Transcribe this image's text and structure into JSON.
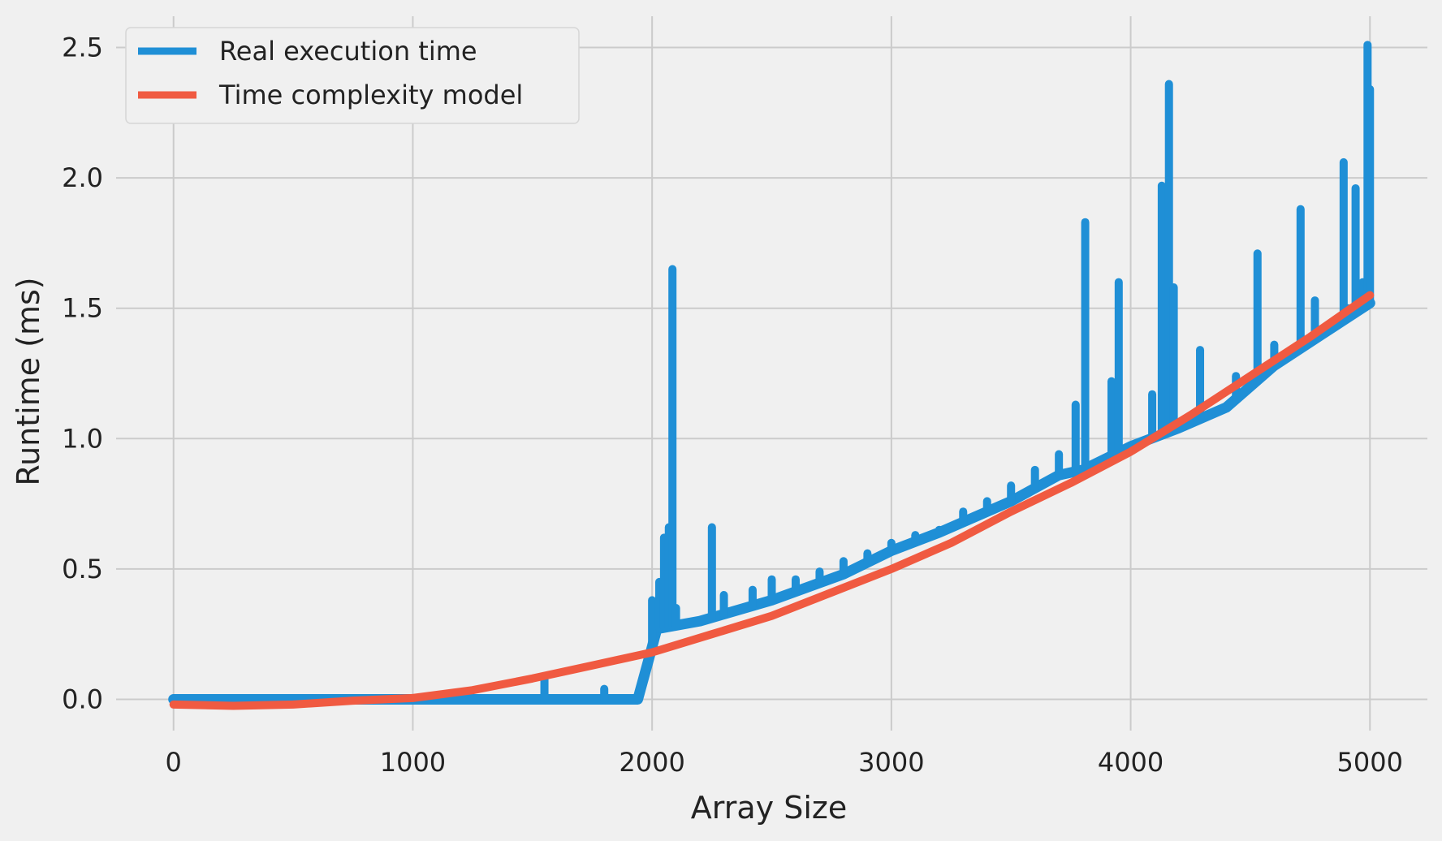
{
  "chart_data": {
    "type": "line",
    "title": "",
    "xlabel": "Array Size",
    "ylabel": "Runtime (ms)",
    "xlim": [
      -240,
      5240
    ],
    "ylim": [
      -0.12,
      2.62
    ],
    "x_ticks": [
      0,
      1000,
      2000,
      3000,
      4000,
      5000
    ],
    "y_ticks": [
      0.0,
      0.5,
      1.0,
      1.5,
      2.0,
      2.5
    ],
    "x_tick_labels": [
      "0",
      "1000",
      "2000",
      "3000",
      "4000",
      "5000"
    ],
    "y_tick_labels": [
      "0.0",
      "0.5",
      "1.0",
      "1.5",
      "2.0",
      "2.5"
    ],
    "grid": true,
    "legend_position": "top-left",
    "series": [
      {
        "name": "Real execution time",
        "color": "#1f8fd6",
        "baseline": [
          [
            0,
            0.0
          ],
          [
            500,
            0.0
          ],
          [
            1000,
            0.0
          ],
          [
            1500,
            0.0
          ],
          [
            1940,
            0.0
          ],
          [
            2000,
            0.2
          ],
          [
            2020,
            0.27
          ],
          [
            2200,
            0.3
          ],
          [
            2500,
            0.38
          ],
          [
            2800,
            0.48
          ],
          [
            3000,
            0.57
          ],
          [
            3200,
            0.64
          ],
          [
            3500,
            0.76
          ],
          [
            3700,
            0.86
          ],
          [
            3800,
            0.88
          ],
          [
            4000,
            0.97
          ],
          [
            4200,
            1.04
          ],
          [
            4400,
            1.12
          ],
          [
            4600,
            1.28
          ],
          [
            4800,
            1.4
          ],
          [
            5000,
            1.52
          ]
        ],
        "spikes": [
          [
            1550,
            0.08
          ],
          [
            1800,
            0.04
          ],
          [
            1990,
            0.18
          ],
          [
            2000,
            0.38
          ],
          [
            2030,
            0.45
          ],
          [
            2050,
            0.62
          ],
          [
            2070,
            0.66
          ],
          [
            2085,
            1.65
          ],
          [
            2100,
            0.35
          ],
          [
            2250,
            0.66
          ],
          [
            2300,
            0.4
          ],
          [
            2420,
            0.42
          ],
          [
            2500,
            0.46
          ],
          [
            2600,
            0.46
          ],
          [
            2700,
            0.49
          ],
          [
            2800,
            0.53
          ],
          [
            2900,
            0.56
          ],
          [
            3000,
            0.6
          ],
          [
            3100,
            0.63
          ],
          [
            3200,
            0.65
          ],
          [
            3300,
            0.72
          ],
          [
            3400,
            0.76
          ],
          [
            3500,
            0.82
          ],
          [
            3600,
            0.88
          ],
          [
            3700,
            0.94
          ],
          [
            3770,
            1.13
          ],
          [
            3810,
            1.83
          ],
          [
            3920,
            1.22
          ],
          [
            3950,
            1.6
          ],
          [
            4090,
            1.17
          ],
          [
            4130,
            1.97
          ],
          [
            4160,
            2.36
          ],
          [
            4180,
            1.58
          ],
          [
            4290,
            1.34
          ],
          [
            4440,
            1.24
          ],
          [
            4530,
            1.71
          ],
          [
            4600,
            1.36
          ],
          [
            4710,
            1.88
          ],
          [
            4770,
            1.53
          ],
          [
            4890,
            2.06
          ],
          [
            4910,
            1.5
          ],
          [
            4940,
            1.96
          ],
          [
            4970,
            1.6
          ],
          [
            4990,
            2.51
          ],
          [
            5000,
            2.34
          ]
        ]
      },
      {
        "name": "Time complexity model",
        "color": "#f05a41",
        "x": [
          0,
          250,
          500,
          750,
          1000,
          1250,
          1500,
          1750,
          2000,
          2250,
          2500,
          2750,
          3000,
          3250,
          3500,
          3750,
          4000,
          4250,
          4500,
          4750,
          5000
        ],
        "y": [
          -0.02,
          -0.025,
          -0.02,
          -0.005,
          0.005,
          0.035,
          0.08,
          0.13,
          0.18,
          0.25,
          0.32,
          0.41,
          0.5,
          0.6,
          0.72,
          0.83,
          0.95,
          1.09,
          1.24,
          1.39,
          1.55
        ]
      }
    ]
  }
}
